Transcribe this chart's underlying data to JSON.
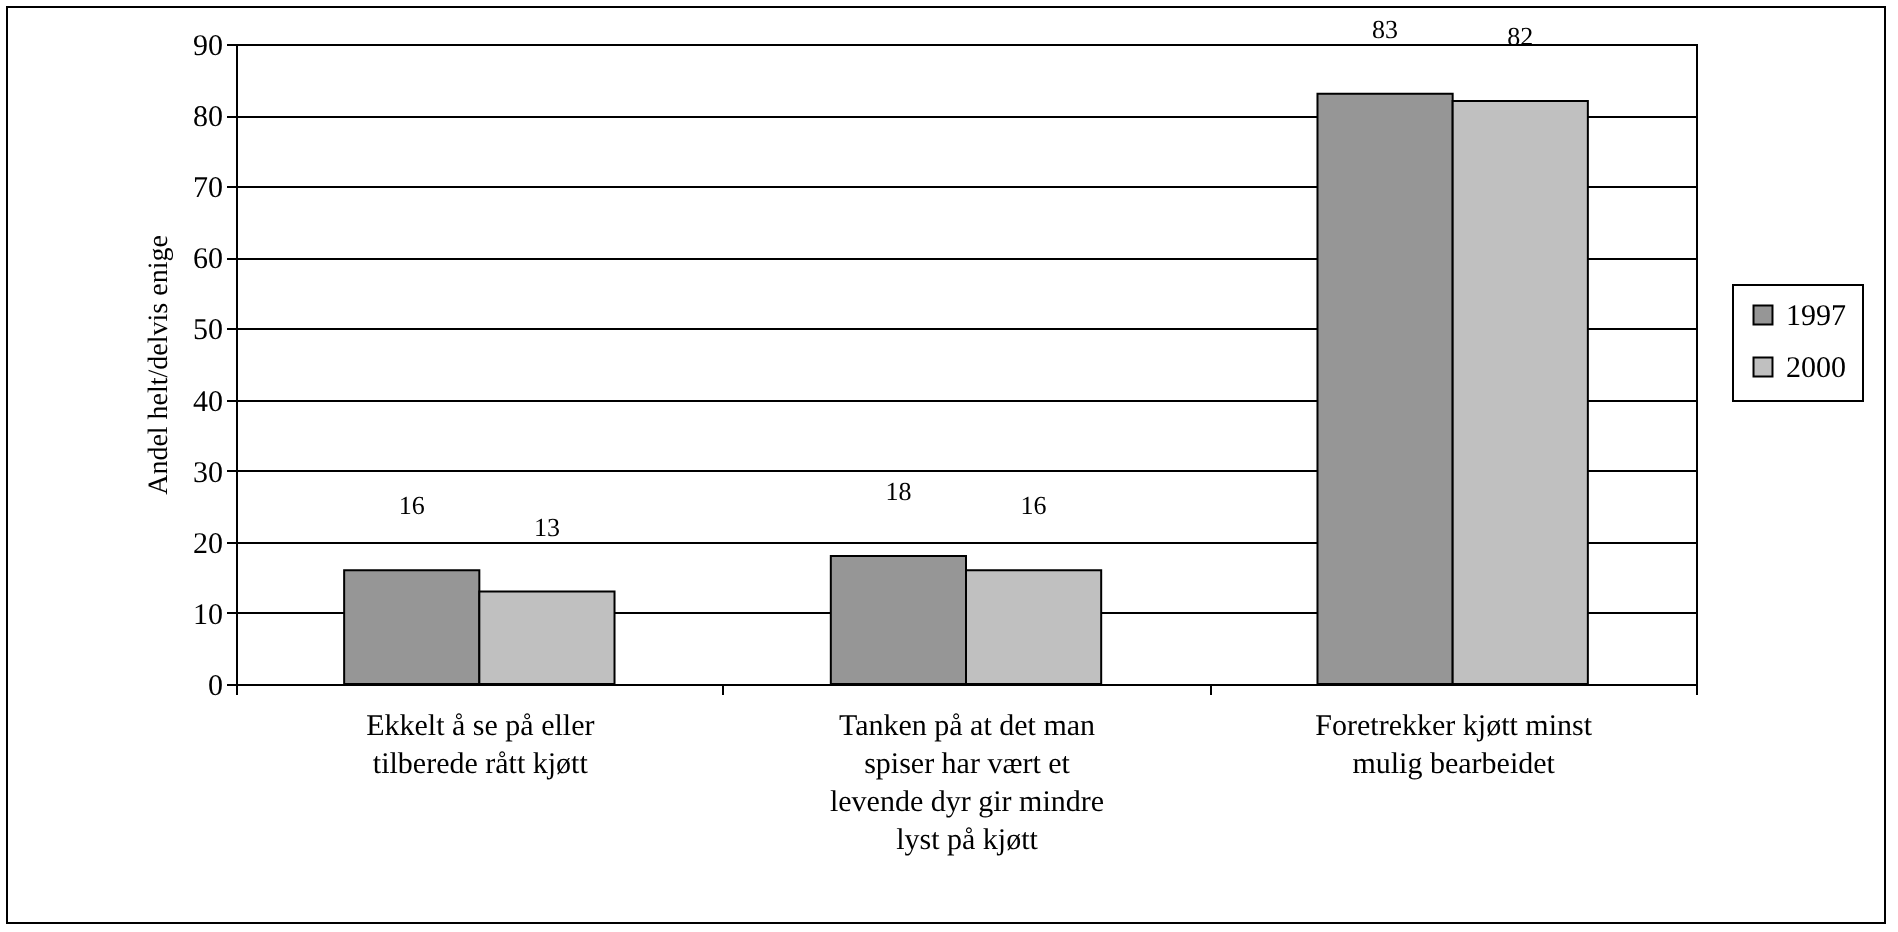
{
  "chart_data": {
    "type": "bar",
    "ylabel": "Andel helt/delvis enige",
    "categories": [
      "Ekkelt å se på eller tilberede rått kjøtt",
      "Tanken på at det man spiser har vært et levende dyr gir mindre lyst på kjøtt",
      "Foretrekker kjøtt minst mulig bearbeidet"
    ],
    "series": [
      {
        "name": "1997",
        "color": "#969696",
        "values": [
          16,
          18,
          83
        ]
      },
      {
        "name": "2000",
        "color": "#c0c0c0",
        "values": [
          13,
          16,
          82
        ]
      }
    ],
    "ylim": [
      0,
      90
    ],
    "yticks": [
      0,
      10,
      20,
      30,
      40,
      50,
      60,
      70,
      80,
      90
    ],
    "grid": "y",
    "legend": "right",
    "data_labels": true
  }
}
